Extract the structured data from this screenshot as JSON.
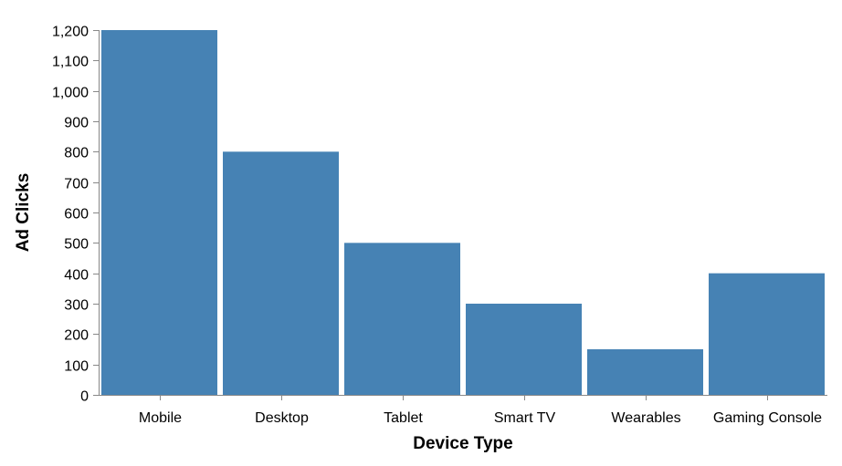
{
  "chart_data": {
    "type": "bar",
    "categories": [
      "Mobile",
      "Desktop",
      "Tablet",
      "Smart TV",
      "Wearables",
      "Gaming Console"
    ],
    "values": [
      1200,
      800,
      500,
      300,
      150,
      400
    ],
    "xlabel": "Device Type",
    "ylabel": "Ad Clicks",
    "ylim": [
      0,
      1200
    ],
    "yticks": [
      0,
      100,
      200,
      300,
      400,
      500,
      600,
      700,
      800,
      900,
      1000,
      1100,
      1200
    ],
    "ytick_labels": [
      "0",
      "100",
      "200",
      "300",
      "400",
      "500",
      "600",
      "700",
      "800",
      "900",
      "1,000",
      "1,100",
      "1,200"
    ],
    "bar_color": "#4682b4",
    "grid": false,
    "legend": "none"
  }
}
